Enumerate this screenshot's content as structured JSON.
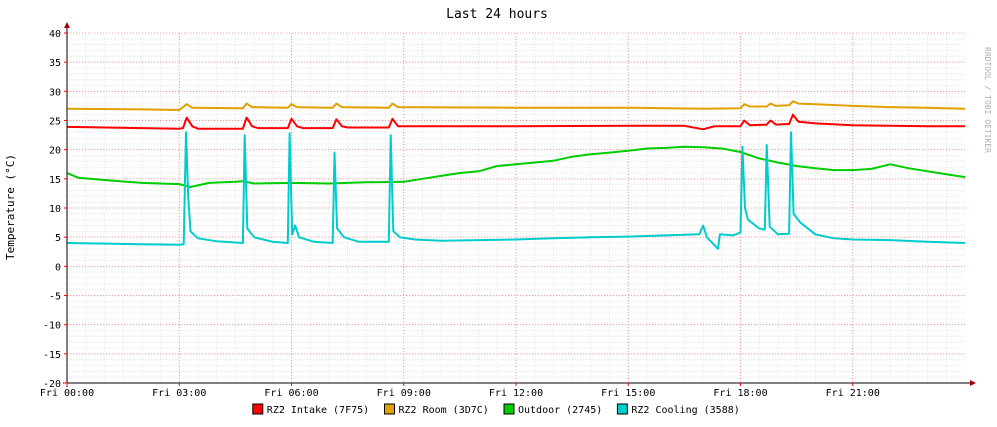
{
  "chart_data": {
    "type": "line",
    "title": "Last 24 hours",
    "ylabel": "Temperature (°C)",
    "watermark": "RRDTOOL / TOBI OETIKER",
    "ylim": [
      -20,
      40
    ],
    "xlim": [
      0,
      24
    ],
    "yticks": [
      40,
      35,
      30,
      25,
      20,
      15,
      10,
      5,
      0,
      -5,
      -10,
      -15,
      -20
    ],
    "xticks": [
      {
        "x": 0,
        "label": "Fri 00:00"
      },
      {
        "x": 3,
        "label": "Fri 03:00"
      },
      {
        "x": 6,
        "label": "Fri 06:00"
      },
      {
        "x": 9,
        "label": "Fri 09:00"
      },
      {
        "x": 12,
        "label": "Fri 12:00"
      },
      {
        "x": 15,
        "label": "Fri 15:00"
      },
      {
        "x": 18,
        "label": "Fri 18:00"
      },
      {
        "x": 21,
        "label": "Fri 21:00"
      }
    ],
    "grid": true,
    "legend_position": "bottom",
    "series": [
      {
        "name": "RZ2 Intake (7F75)",
        "color": "#ff0000",
        "points": [
          [
            0,
            23.9
          ],
          [
            1,
            23.8
          ],
          [
            2,
            23.7
          ],
          [
            3.0,
            23.6
          ],
          [
            3.1,
            23.7
          ],
          [
            3.2,
            25.5
          ],
          [
            3.35,
            24.0
          ],
          [
            3.5,
            23.6
          ],
          [
            4.7,
            23.6
          ],
          [
            4.8,
            25.5
          ],
          [
            4.95,
            24.0
          ],
          [
            5.1,
            23.7
          ],
          [
            5.9,
            23.7
          ],
          [
            6.0,
            25.3
          ],
          [
            6.15,
            24.0
          ],
          [
            6.3,
            23.7
          ],
          [
            7.1,
            23.7
          ],
          [
            7.2,
            25.2
          ],
          [
            7.35,
            24.0
          ],
          [
            7.5,
            23.8
          ],
          [
            8.6,
            23.8
          ],
          [
            8.7,
            25.3
          ],
          [
            8.85,
            24.0
          ],
          [
            9.0,
            24.0
          ],
          [
            12,
            24.0
          ],
          [
            15,
            24.1
          ],
          [
            16.5,
            24.1
          ],
          [
            17,
            23.5
          ],
          [
            17.3,
            24.0
          ],
          [
            18.0,
            24.0
          ],
          [
            18.1,
            25.0
          ],
          [
            18.25,
            24.2
          ],
          [
            18.7,
            24.3
          ],
          [
            18.8,
            25.0
          ],
          [
            18.95,
            24.3
          ],
          [
            19.3,
            24.4
          ],
          [
            19.4,
            26.0
          ],
          [
            19.55,
            24.8
          ],
          [
            20,
            24.5
          ],
          [
            21,
            24.2
          ],
          [
            22,
            24.1
          ],
          [
            23,
            24.0
          ],
          [
            24,
            24.0
          ]
        ]
      },
      {
        "name": "RZ2 Room (3D7C)",
        "color": "#e0a000",
        "points": [
          [
            0,
            27.0
          ],
          [
            2,
            26.9
          ],
          [
            3.0,
            26.8
          ],
          [
            3.2,
            27.8
          ],
          [
            3.35,
            27.2
          ],
          [
            4.7,
            27.1
          ],
          [
            4.8,
            27.9
          ],
          [
            4.95,
            27.3
          ],
          [
            5.9,
            27.2
          ],
          [
            6.0,
            27.8
          ],
          [
            6.15,
            27.3
          ],
          [
            7.1,
            27.2
          ],
          [
            7.2,
            27.9
          ],
          [
            7.35,
            27.3
          ],
          [
            8.6,
            27.2
          ],
          [
            8.7,
            27.9
          ],
          [
            8.85,
            27.3
          ],
          [
            12,
            27.2
          ],
          [
            15,
            27.2
          ],
          [
            17,
            27.0
          ],
          [
            18.0,
            27.1
          ],
          [
            18.1,
            27.8
          ],
          [
            18.25,
            27.4
          ],
          [
            18.7,
            27.4
          ],
          [
            18.8,
            27.9
          ],
          [
            18.95,
            27.5
          ],
          [
            19.3,
            27.6
          ],
          [
            19.4,
            28.3
          ],
          [
            19.55,
            27.9
          ],
          [
            20,
            27.8
          ],
          [
            21,
            27.5
          ],
          [
            22,
            27.3
          ],
          [
            23,
            27.2
          ],
          [
            24,
            27.0
          ]
        ]
      },
      {
        "name": "Outdoor (2745)",
        "color": "#00cc00",
        "points": [
          [
            0,
            16.0
          ],
          [
            0.3,
            15.2
          ],
          [
            1,
            14.8
          ],
          [
            2,
            14.3
          ],
          [
            3.0,
            14.1
          ],
          [
            3.3,
            13.6
          ],
          [
            3.8,
            14.3
          ],
          [
            4.5,
            14.5
          ],
          [
            4.7,
            14.6
          ],
          [
            5.0,
            14.2
          ],
          [
            6,
            14.3
          ],
          [
            7,
            14.2
          ],
          [
            8,
            14.4
          ],
          [
            9,
            14.5
          ],
          [
            9.5,
            15.0
          ],
          [
            10,
            15.5
          ],
          [
            10.5,
            16.0
          ],
          [
            11,
            16.3
          ],
          [
            11.5,
            17.2
          ],
          [
            12,
            17.5
          ],
          [
            12.5,
            17.8
          ],
          [
            13,
            18.1
          ],
          [
            13.5,
            18.8
          ],
          [
            14,
            19.2
          ],
          [
            14.5,
            19.5
          ],
          [
            15,
            19.8
          ],
          [
            15.5,
            20.2
          ],
          [
            16,
            20.3
          ],
          [
            16.5,
            20.5
          ],
          [
            17,
            20.4
          ],
          [
            17.5,
            20.2
          ],
          [
            18,
            19.6
          ],
          [
            18.5,
            18.5
          ],
          [
            19,
            17.8
          ],
          [
            19.5,
            17.2
          ],
          [
            20,
            16.8
          ],
          [
            20.5,
            16.5
          ],
          [
            21,
            16.5
          ],
          [
            21.5,
            16.7
          ],
          [
            22,
            17.5
          ],
          [
            22.5,
            16.8
          ],
          [
            23,
            16.3
          ],
          [
            23.5,
            15.8
          ],
          [
            24,
            15.3
          ]
        ]
      },
      {
        "name": "RZ2 Cooling (3588)",
        "color": "#00cccc",
        "points": [
          [
            0,
            4.0
          ],
          [
            1,
            3.9
          ],
          [
            2,
            3.8
          ],
          [
            3.0,
            3.7
          ],
          [
            3.12,
            3.8
          ],
          [
            3.18,
            23.0
          ],
          [
            3.24,
            12.0
          ],
          [
            3.3,
            6.0
          ],
          [
            3.5,
            4.8
          ],
          [
            4.0,
            4.3
          ],
          [
            4.7,
            4.0
          ],
          [
            4.75,
            22.5
          ],
          [
            4.82,
            6.5
          ],
          [
            5.0,
            5.0
          ],
          [
            5.5,
            4.2
          ],
          [
            5.9,
            4.0
          ],
          [
            5.95,
            22.8
          ],
          [
            6.02,
            5.5
          ],
          [
            6.1,
            7.0
          ],
          [
            6.2,
            5.0
          ],
          [
            6.6,
            4.2
          ],
          [
            7.1,
            4.0
          ],
          [
            7.15,
            19.5
          ],
          [
            7.22,
            6.5
          ],
          [
            7.4,
            5.0
          ],
          [
            7.8,
            4.2
          ],
          [
            8.6,
            4.2
          ],
          [
            8.65,
            22.5
          ],
          [
            8.72,
            6.0
          ],
          [
            8.9,
            5.0
          ],
          [
            9.3,
            4.6
          ],
          [
            10,
            4.4
          ],
          [
            11,
            4.5
          ],
          [
            12,
            4.6
          ],
          [
            13,
            4.8
          ],
          [
            14,
            5.0
          ],
          [
            15,
            5.1
          ],
          [
            16,
            5.3
          ],
          [
            16.9,
            5.5
          ],
          [
            17.0,
            7.0
          ],
          [
            17.1,
            5.0
          ],
          [
            17.4,
            3.0
          ],
          [
            17.45,
            5.5
          ],
          [
            17.8,
            5.3
          ],
          [
            18.0,
            5.8
          ],
          [
            18.05,
            20.5
          ],
          [
            18.12,
            10.0
          ],
          [
            18.2,
            8.0
          ],
          [
            18.5,
            6.5
          ],
          [
            18.65,
            6.3
          ],
          [
            18.7,
            20.8
          ],
          [
            18.78,
            6.8
          ],
          [
            19.0,
            5.5
          ],
          [
            19.3,
            5.6
          ],
          [
            19.35,
            23.0
          ],
          [
            19.42,
            9.0
          ],
          [
            19.6,
            7.5
          ],
          [
            20.0,
            5.5
          ],
          [
            20.5,
            4.8
          ],
          [
            21,
            4.6
          ],
          [
            22,
            4.5
          ],
          [
            23,
            4.2
          ],
          [
            24,
            4.0
          ]
        ]
      }
    ]
  }
}
